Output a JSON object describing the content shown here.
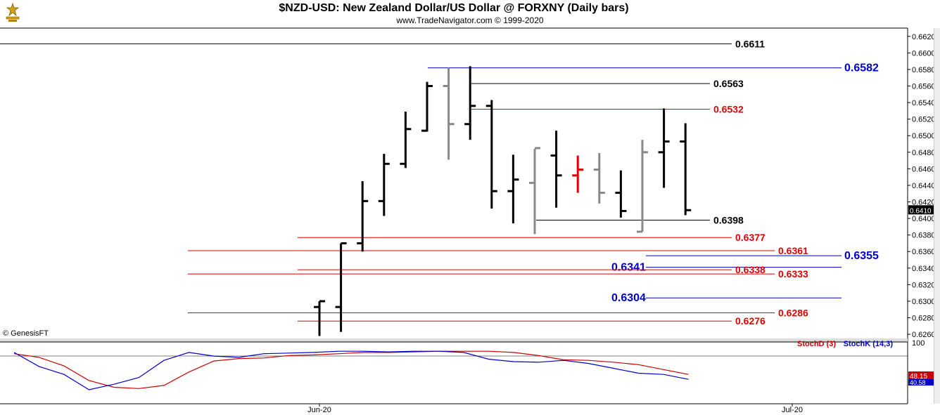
{
  "header": {
    "title": "$NZD-USD:  New Zealand Dollar/US Dollar @ FORXNY  (Daily bars)",
    "subtitle": "www.TradeNavigator.com © 1999-2020"
  },
  "watermark": "© GenesisFT",
  "colors": {
    "up_bar": "#000000",
    "down_bar": "#888888",
    "highlight_bar": "#e00000",
    "resistance": "#e00000",
    "support": "#0000cc",
    "stochD": "#cc0000",
    "stochK": "#0000cc",
    "frame": "#000000"
  },
  "chart_data": [
    {
      "type": "ohlc",
      "title": "$NZD-USD:  New Zealand Dollar/US Dollar @ FORXNY  (Daily bars)",
      "x_labels": [
        "Jun-20",
        "Jul-20"
      ],
      "y_ticks": [
        "0.6620",
        "0.6600",
        "0.6580",
        "0.6560",
        "0.6540",
        "0.6520",
        "0.6500",
        "0.6480",
        "0.6460",
        "0.6440",
        "0.6420",
        "0.6400",
        "0.6380",
        "0.6360",
        "0.6340",
        "0.6320",
        "0.6300",
        "0.6280",
        "0.6260"
      ],
      "ylim": [
        0.6255,
        0.663
      ],
      "last_price": "0.6410",
      "bars": [
        {
          "o": 0.6293,
          "h": 0.63,
          "l": 0.6258,
          "c": 0.63,
          "color": "up"
        },
        {
          "o": 0.6293,
          "h": 0.637,
          "l": 0.6263,
          "c": 0.637,
          "color": "up"
        },
        {
          "o": 0.637,
          "h": 0.6445,
          "l": 0.636,
          "c": 0.6421,
          "color": "up"
        },
        {
          "o": 0.6421,
          "h": 0.6478,
          "l": 0.6403,
          "c": 0.6466,
          "color": "up"
        },
        {
          "o": 0.6466,
          "h": 0.6529,
          "l": 0.6461,
          "c": 0.6508,
          "color": "up"
        },
        {
          "o": 0.6506,
          "h": 0.6565,
          "l": 0.6505,
          "c": 0.656,
          "color": "up"
        },
        {
          "o": 0.656,
          "h": 0.6582,
          "l": 0.6471,
          "c": 0.6514,
          "color": "down"
        },
        {
          "o": 0.6514,
          "h": 0.6584,
          "l": 0.6495,
          "c": 0.6536,
          "color": "up"
        },
        {
          "o": 0.6536,
          "h": 0.6543,
          "l": 0.6412,
          "c": 0.6433,
          "color": "up"
        },
        {
          "o": 0.6433,
          "h": 0.6477,
          "l": 0.6394,
          "c": 0.6447,
          "color": "up"
        },
        {
          "o": 0.6443,
          "h": 0.6484,
          "l": 0.6381,
          "c": 0.6485,
          "color": "down"
        },
        {
          "o": 0.6476,
          "h": 0.6506,
          "l": 0.6413,
          "c": 0.6452,
          "color": "up"
        },
        {
          "o": 0.6452,
          "h": 0.6476,
          "l": 0.6431,
          "c": 0.6459,
          "color": "highlight"
        },
        {
          "o": 0.6459,
          "h": 0.6479,
          "l": 0.6418,
          "c": 0.6431,
          "color": "down"
        },
        {
          "o": 0.6431,
          "h": 0.6458,
          "l": 0.6401,
          "c": 0.6409,
          "color": "up"
        },
        {
          "o": 0.6384,
          "h": 0.6495,
          "l": 0.6384,
          "c": 0.648,
          "color": "down"
        },
        {
          "o": 0.648,
          "h": 0.6533,
          "l": 0.6437,
          "c": 0.6493,
          "color": "up"
        },
        {
          "o": 0.6493,
          "h": 0.6515,
          "l": 0.6404,
          "c": 0.641,
          "color": "up"
        }
      ],
      "levels": [
        {
          "value": 0.6611,
          "label": "0.6611",
          "color": "black"
        },
        {
          "value": 0.6582,
          "label": "0.6582",
          "color": "blue"
        },
        {
          "value": 0.6563,
          "label": "0.6563",
          "color": "black"
        },
        {
          "value": 0.6532,
          "label": "0.6532",
          "color": "red"
        },
        {
          "value": 0.6398,
          "label": "0.6398",
          "color": "black"
        },
        {
          "value": 0.6377,
          "label": "0.6377",
          "color": "red"
        },
        {
          "value": 0.6361,
          "label": "0.6361",
          "color": "red"
        },
        {
          "value": 0.6355,
          "label": "0.6355",
          "color": "blue"
        },
        {
          "value": 0.6341,
          "label": "0.6341",
          "color": "blue"
        },
        {
          "value": 0.6338,
          "label": "0.6338",
          "color": "red"
        },
        {
          "value": 0.6333,
          "label": "0.6333",
          "color": "red"
        },
        {
          "value": 0.6304,
          "label": "0.6304",
          "color": "blue"
        },
        {
          "value": 0.6286,
          "label": "0.6286",
          "color": "red"
        },
        {
          "value": 0.6276,
          "label": "0.6276",
          "color": "red"
        }
      ]
    },
    {
      "type": "line",
      "ylim": [
        0,
        100
      ],
      "y_ticks": [
        "100"
      ],
      "last_values": [
        "48.15",
        "40.58"
      ],
      "series": [
        {
          "name": "StochD (3)",
          "color": "stochD",
          "values": [
            82,
            76,
            62,
            38,
            27,
            25,
            30,
            52,
            70,
            74,
            75,
            79,
            80,
            82,
            84,
            84,
            85,
            86,
            86,
            86,
            84,
            79,
            72,
            71,
            68,
            64,
            56,
            48
          ]
        },
        {
          "name": "StochK (14,3)",
          "color": "stochK",
          "values": [
            84,
            61,
            48,
            23,
            32,
            43,
            71,
            84,
            78,
            76,
            82,
            83,
            84,
            86,
            86,
            85,
            86,
            86,
            84,
            73,
            69,
            68,
            71,
            66,
            58,
            50,
            48,
            40
          ]
        }
      ]
    }
  ]
}
